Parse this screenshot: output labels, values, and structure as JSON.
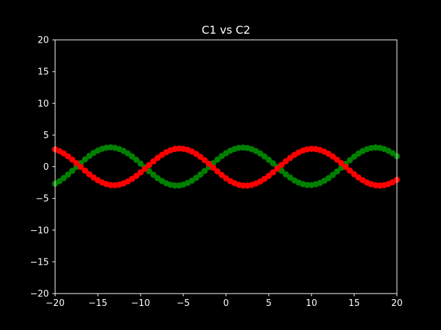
{
  "chart_data": {
    "type": "scatter",
    "title": "C1 vs C2",
    "xlabel": "",
    "ylabel": "",
    "xlim": [
      -20,
      20
    ],
    "ylim": [
      -20,
      20
    ],
    "xticks": [
      -20,
      -15,
      -10,
      -5,
      0,
      5,
      10,
      15,
      20
    ],
    "xtick_labels": [
      "−20",
      "−15",
      "−10",
      "−5",
      "0",
      "5",
      "10",
      "15",
      "20"
    ],
    "yticks": [
      -20,
      -15,
      -10,
      -5,
      0,
      5,
      10,
      15,
      20
    ],
    "ytick_labels": [
      "−20",
      "−15",
      "−10",
      "−5",
      "0",
      "5",
      "10",
      "15",
      "20"
    ],
    "grid": false,
    "background": "#000000",
    "axis_color": "#ffffff",
    "series": [
      {
        "color": "#008000",
        "x": [
          -20,
          -19.5,
          -19,
          -18.5,
          -18,
          -17.5,
          -17,
          -16.5,
          -16,
          -15.5,
          -15,
          -14.5,
          -14,
          -13.5,
          -13,
          -12.5,
          -12,
          -11.5,
          -11,
          -10.5,
          -10,
          -9.5,
          -9,
          -8.5,
          -8,
          -7.5,
          -7,
          -6.5,
          -6,
          -5.5,
          -5,
          -4.5,
          -4,
          -3.5,
          -3,
          -2.5,
          -2,
          -1.5,
          -1,
          -0.5,
          0,
          0.5,
          1,
          1.5,
          2,
          2.5,
          3,
          3.5,
          4,
          4.5,
          5,
          5.5,
          6,
          6.5,
          7,
          7.5,
          8,
          8.5,
          9,
          9.5,
          10,
          10.5,
          11,
          11.5,
          12,
          12.5,
          13,
          13.5,
          14,
          14.5,
          15,
          15.5,
          16,
          16.5,
          17,
          17.5,
          18,
          18.5,
          19,
          19.5,
          20
        ],
        "y": [
          -2.68,
          -2.28,
          -1.79,
          -1.24,
          -0.65,
          -0.04,
          0.58,
          1.16,
          1.7,
          2.17,
          2.55,
          2.83,
          3,
          3.05,
          2.98,
          2.79,
          2.5,
          2.1,
          1.62,
          1.08,
          0.49,
          -0.11,
          -0.71,
          -1.28,
          -1.8,
          -2.25,
          -2.6,
          -2.84,
          -2.96,
          -2.95,
          -2.82,
          -2.57,
          -2.21,
          -1.76,
          -1.23,
          -0.66,
          -0.06,
          0.55,
          1.13,
          1.67,
          2.14,
          2.52,
          2.8,
          2.97,
          3.02,
          2.95,
          2.77,
          2.48,
          2.09,
          1.62,
          1.1,
          0.54,
          -0.05,
          -0.64,
          -1.2,
          -1.71,
          -2.15,
          -2.49,
          -2.74,
          -2.87,
          -2.88,
          -2.77,
          -2.55,
          -2.22,
          -1.8,
          -1.3,
          -0.74,
          -0.15,
          0.45,
          1.04,
          1.59,
          2.07,
          2.47,
          2.77,
          2.96,
          3.03,
          2.97,
          2.8,
          2.51,
          2.13,
          1.66
        ],
        "marker": "circle"
      },
      {
        "color": "#ff0000",
        "x": [
          -20,
          -19.5,
          -19,
          -18.5,
          -18,
          -17.5,
          -17,
          -16.5,
          -16,
          -15.5,
          -15,
          -14.5,
          -14,
          -13.5,
          -13,
          -12.5,
          -12,
          -11.5,
          -11,
          -10.5,
          -10,
          -9.5,
          -9,
          -8.5,
          -8,
          -7.5,
          -7,
          -6.5,
          -6,
          -5.5,
          -5,
          -4.5,
          -4,
          -3.5,
          -3,
          -2.5,
          -2,
          -1.5,
          -1,
          -0.5,
          0,
          0.5,
          1,
          1.5,
          2,
          2.5,
          3,
          3.5,
          4,
          4.5,
          5,
          5.5,
          6,
          6.5,
          7,
          7.5,
          8,
          8.5,
          9,
          9.5,
          10,
          10.5,
          11,
          11.5,
          12,
          12.5,
          13,
          13.5,
          14,
          14.5,
          15,
          15.5,
          16,
          16.5,
          17,
          17.5,
          18,
          18.5,
          19,
          19.5,
          20
        ],
        "y": [
          2.74,
          2.47,
          2.1,
          1.64,
          1.12,
          0.55,
          -0.04,
          -0.63,
          -1.18,
          -1.69,
          -2.13,
          -2.48,
          -2.74,
          -2.89,
          -2.92,
          -2.83,
          -2.63,
          -2.32,
          -1.92,
          -1.44,
          -0.9,
          -0.32,
          0.27,
          0.85,
          1.39,
          1.87,
          2.28,
          2.59,
          2.79,
          2.87,
          2.83,
          2.67,
          2.4,
          2.02,
          1.56,
          1.03,
          0.46,
          -0.14,
          -0.74,
          -1.3,
          -1.82,
          -2.26,
          -2.6,
          -2.84,
          -2.97,
          -2.98,
          -2.87,
          -2.65,
          -2.33,
          -1.91,
          -1.43,
          -0.89,
          -0.31,
          0.29,
          0.86,
          1.39,
          1.86,
          2.25,
          2.55,
          2.74,
          2.82,
          2.79,
          2.64,
          2.39,
          2.04,
          1.61,
          1.1,
          0.55,
          -0.04,
          -0.62,
          -1.18,
          -1.69,
          -2.13,
          -2.49,
          -2.76,
          -2.92,
          -2.97,
          -2.9,
          -2.72,
          -2.44,
          -2.06
        ],
        "marker": "circle"
      }
    ]
  }
}
